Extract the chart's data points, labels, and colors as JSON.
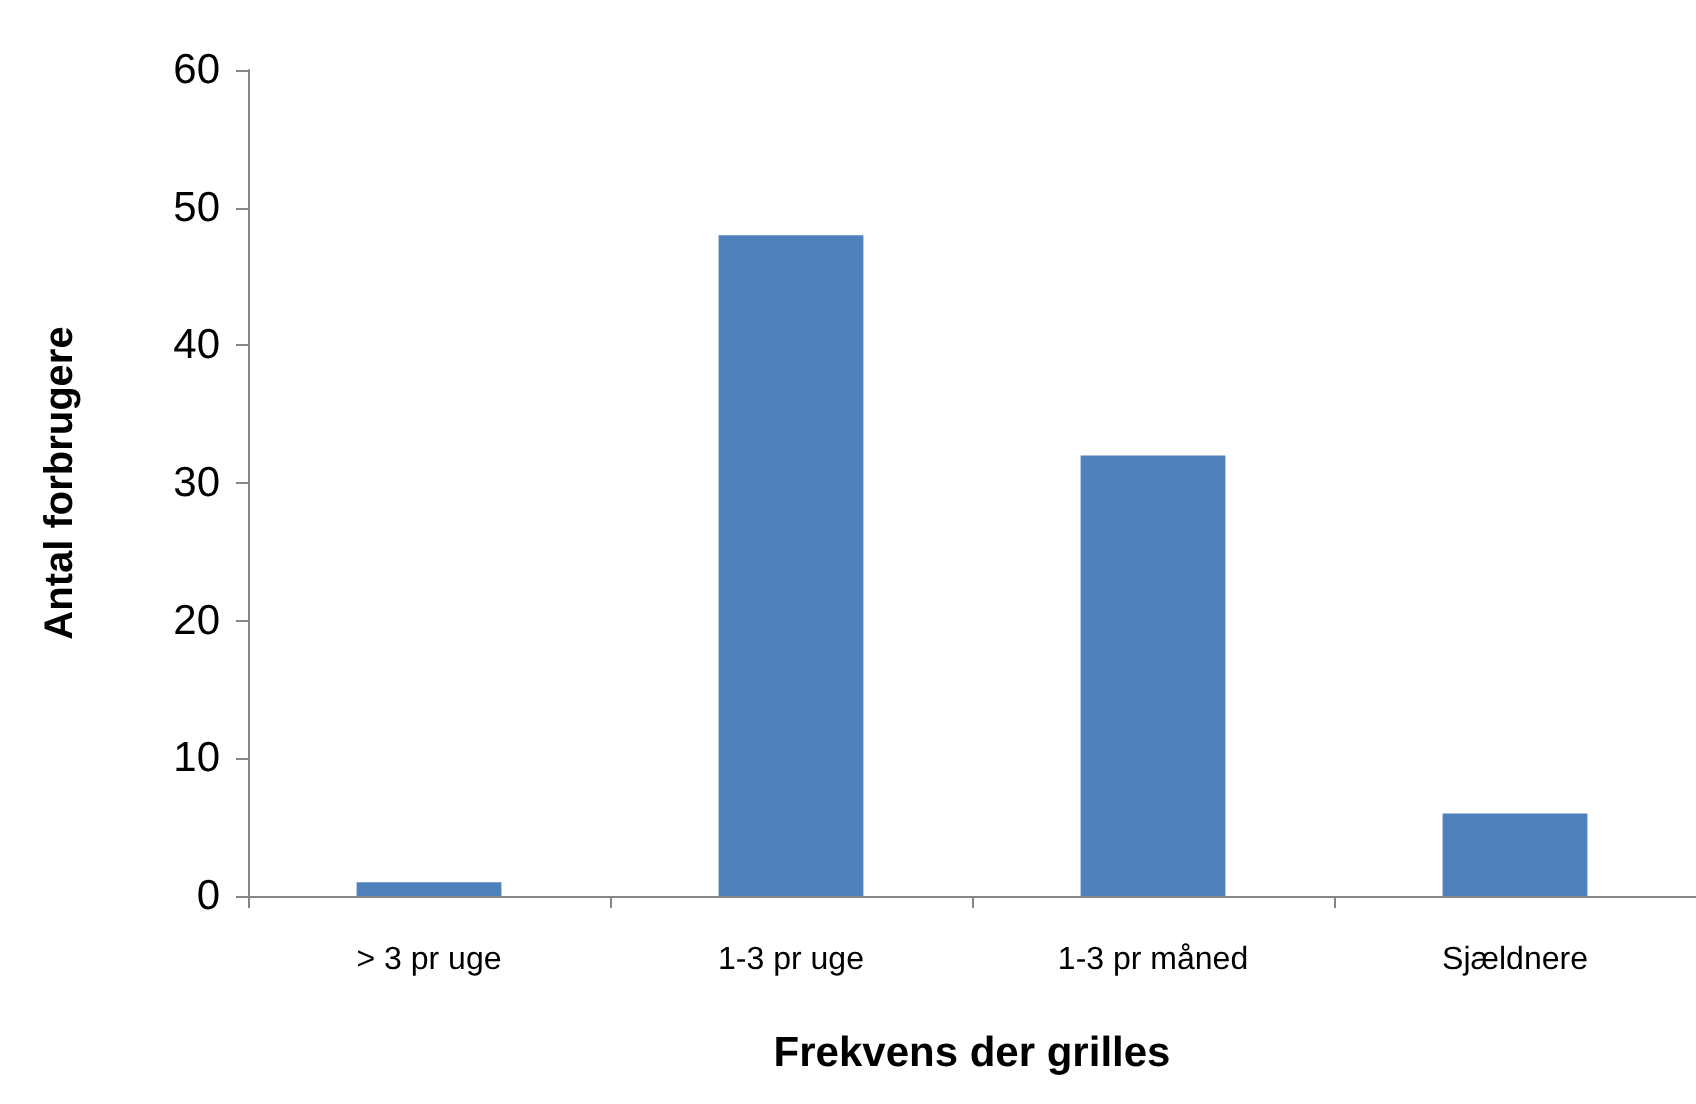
{
  "chart_data": {
    "type": "bar",
    "xlabel": "Frekvens der grilles",
    "ylabel": "Antal forbrugere",
    "categories": [
      "> 3 pr uge",
      "1-3 pr uge",
      "1-3 pr måned",
      "Sjældnere"
    ],
    "values": [
      1,
      48,
      32,
      6
    ],
    "color": "#4f81bd",
    "ylim": [
      0,
      60
    ],
    "yticks": [
      0,
      10,
      20,
      30,
      40,
      50,
      60
    ],
    "grid": false
  }
}
